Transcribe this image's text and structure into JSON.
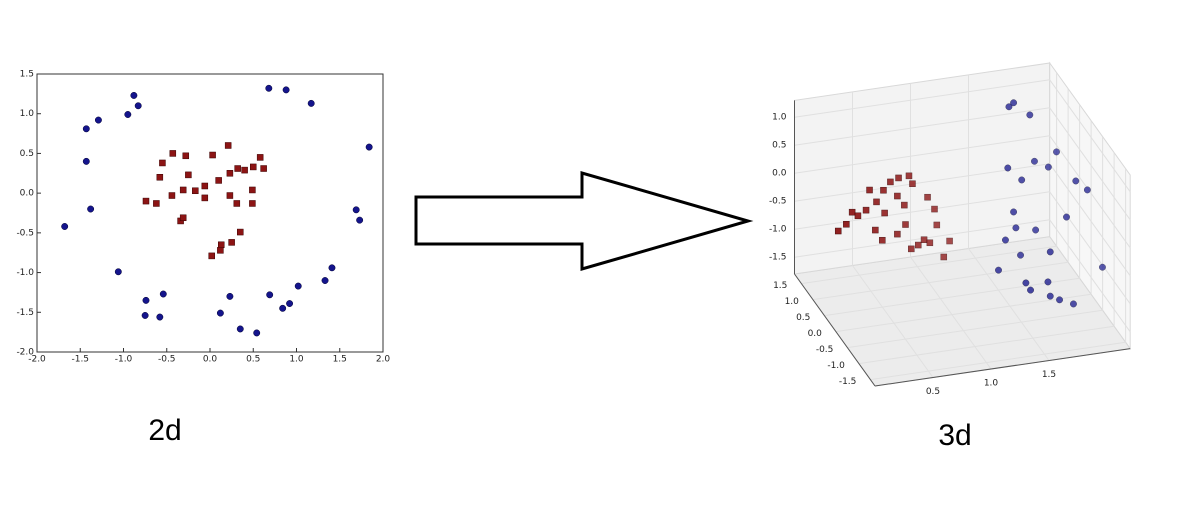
{
  "chart_data": [
    {
      "type": "scatter",
      "caption": "2d",
      "xlim": [
        -2,
        2
      ],
      "ylim": [
        -2,
        1.5
      ],
      "xticks": [
        {
          "value": -2,
          "label": "-2.0"
        },
        -1.5,
        {
          "value": -1,
          "label": "-1.0"
        },
        -0.5,
        {
          "value": 0,
          "label": "0.0"
        },
        0.5,
        {
          "value": 1,
          "label": "1.0"
        },
        1.5,
        {
          "value": 2,
          "label": "2.0"
        }
      ],
      "yticks": [
        {
          "value": -2,
          "label": "-2.0"
        },
        -1.5,
        {
          "value": -1,
          "label": "-1.0"
        },
        -0.5,
        {
          "value": 0,
          "label": "0.0"
        },
        0.5,
        {
          "value": 1,
          "label": "1.0"
        },
        1.5
      ],
      "series": [
        {
          "color": "#14148c",
          "marker": "circle",
          "x": [
            -1.68,
            -1.38,
            -1.43,
            -1.43,
            -1.29,
            -0.88,
            -0.83,
            -0.95,
            -1.06,
            -0.74,
            -0.75,
            -0.58,
            -0.54,
            0.12,
            0.23,
            0.35,
            0.54,
            0.69,
            0.84,
            0.92,
            1.02,
            1.33,
            1.41,
            1.69,
            1.73,
            1.84,
            0.68,
            0.88,
            1.17
          ],
          "y": [
            -0.42,
            -0.2,
            0.4,
            0.81,
            0.92,
            1.23,
            1.1,
            0.99,
            -0.99,
            -1.35,
            -1.54,
            -1.56,
            -1.27,
            -1.51,
            -1.3,
            -1.71,
            -1.76,
            -1.28,
            -1.45,
            -1.39,
            -1.17,
            -1.1,
            -0.94,
            -0.21,
            -0.34,
            0.58,
            1.32,
            1.3,
            1.13
          ]
        },
        {
          "color": "#8c1414",
          "marker": "square",
          "x": [
            -0.74,
            -0.62,
            -0.58,
            -0.55,
            -0.43,
            -0.44,
            -0.31,
            -0.28,
            -0.25,
            -0.34,
            -0.31,
            -0.17,
            -0.06,
            0.03,
            -0.06,
            0.1,
            0.21,
            0.23,
            0.23,
            0.31,
            0.32,
            0.4,
            0.49,
            0.5,
            0.58,
            0.62,
            0.49,
            0.35,
            0.25,
            0.13,
            0.12,
            0.02
          ],
          "y": [
            -0.1,
            -0.13,
            0.2,
            0.38,
            0.5,
            -0.03,
            0.04,
            0.47,
            0.23,
            -0.35,
            -0.31,
            0.03,
            0.09,
            0.48,
            -0.06,
            0.16,
            0.6,
            0.25,
            -0.03,
            -0.13,
            0.31,
            0.29,
            0.04,
            0.33,
            0.45,
            0.31,
            -0.13,
            -0.49,
            -0.62,
            -0.65,
            -0.72,
            -0.79
          ]
        }
      ]
    },
    {
      "type": "scatter3d",
      "caption": "3d",
      "xlim": [
        0,
        2.2
      ],
      "ylim": [
        -1.7,
        1.8
      ],
      "zlim": [
        -1.8,
        1.3
      ],
      "xticks": [
        0.5,
        {
          "value": 1,
          "label": "1.0"
        },
        1.5
      ],
      "yticks": [
        -1.5,
        {
          "value": -1,
          "label": "-1.0"
        },
        -0.5,
        {
          "value": 0,
          "label": "0.0"
        },
        0.5,
        {
          "value": 1,
          "label": "1.0"
        },
        1.5
      ],
      "zticks": [
        -1.5,
        {
          "value": -1,
          "label": "-1.0"
        },
        -0.5,
        {
          "value": 0,
          "label": "0.0"
        },
        0.5,
        {
          "value": 1,
          "label": "1.0"
        }
      ],
      "series": [
        {
          "color": "#8c1414",
          "marker": "square",
          "x": [
            0.02,
            0.09,
            0.14,
            0.19,
            0.26,
            0.29,
            0.35,
            0.41,
            0.42,
            0.47,
            0.53,
            0.54,
            0.59,
            0.6,
            0.63,
            0.66,
            0.65,
            0.71,
            0.76,
            0.79,
            0.81,
            0.85,
            0.87,
            0.93,
            0.98,
            0.53,
            0.4,
            0.34
          ],
          "y": [
            0,
            0,
            0,
            0,
            0,
            0,
            0,
            0,
            0,
            0,
            0,
            0,
            0,
            0,
            0,
            0,
            0,
            0,
            0,
            0,
            0,
            0,
            0,
            0,
            0,
            0,
            0,
            0
          ],
          "z": [
            -0.01,
            0.09,
            0.29,
            0.21,
            0.29,
            0.64,
            0.41,
            0.6,
            0.19,
            0.73,
            0.46,
            0.78,
            0.28,
            -0.07,
            0.79,
            0.64,
            -0.52,
            -0.47,
            -0.39,
            0.36,
            -0.46,
            0.13,
            -0.16,
            -0.75,
            -0.48,
            -0.22,
            -0.29,
            -0.09
          ]
        },
        {
          "color": "#14148c",
          "marker": "circle",
          "x": [
            1.69,
            1.73,
            1.87,
            1.91,
            2.03,
            2.1,
            1.68,
            1.8,
            1.73,
            1.75,
            1.92,
            1.66,
            1.79,
            1.6,
            1.83,
            1.93,
            1.75,
            1.61,
            2.06,
            1.59,
            1.61,
            1.69,
            1.81,
            1.4,
            1.44
          ],
          "y": [
            1,
            1,
            1,
            1,
            1,
            1,
            1,
            1,
            1,
            1,
            1,
            1,
            1,
            1,
            -1.2,
            -1.2,
            -1.2,
            -1.2,
            -1.2,
            -1.2,
            -1.2,
            -1.2,
            -1.2,
            -1.2,
            -1.2
          ],
          "z": [
            1.13,
            1.19,
            0.93,
            0.09,
            -0.05,
            0.2,
            0.04,
            -0.21,
            -0.76,
            -1.05,
            -1.14,
            -1.24,
            -1.55,
            -1.76,
            1.02,
            0.83,
            0.4,
            -0.18,
            -0.59,
            -0.71,
            -0.97,
            -1.06,
            -1.17,
            -0.67,
            -0.81
          ]
        }
      ]
    }
  ]
}
